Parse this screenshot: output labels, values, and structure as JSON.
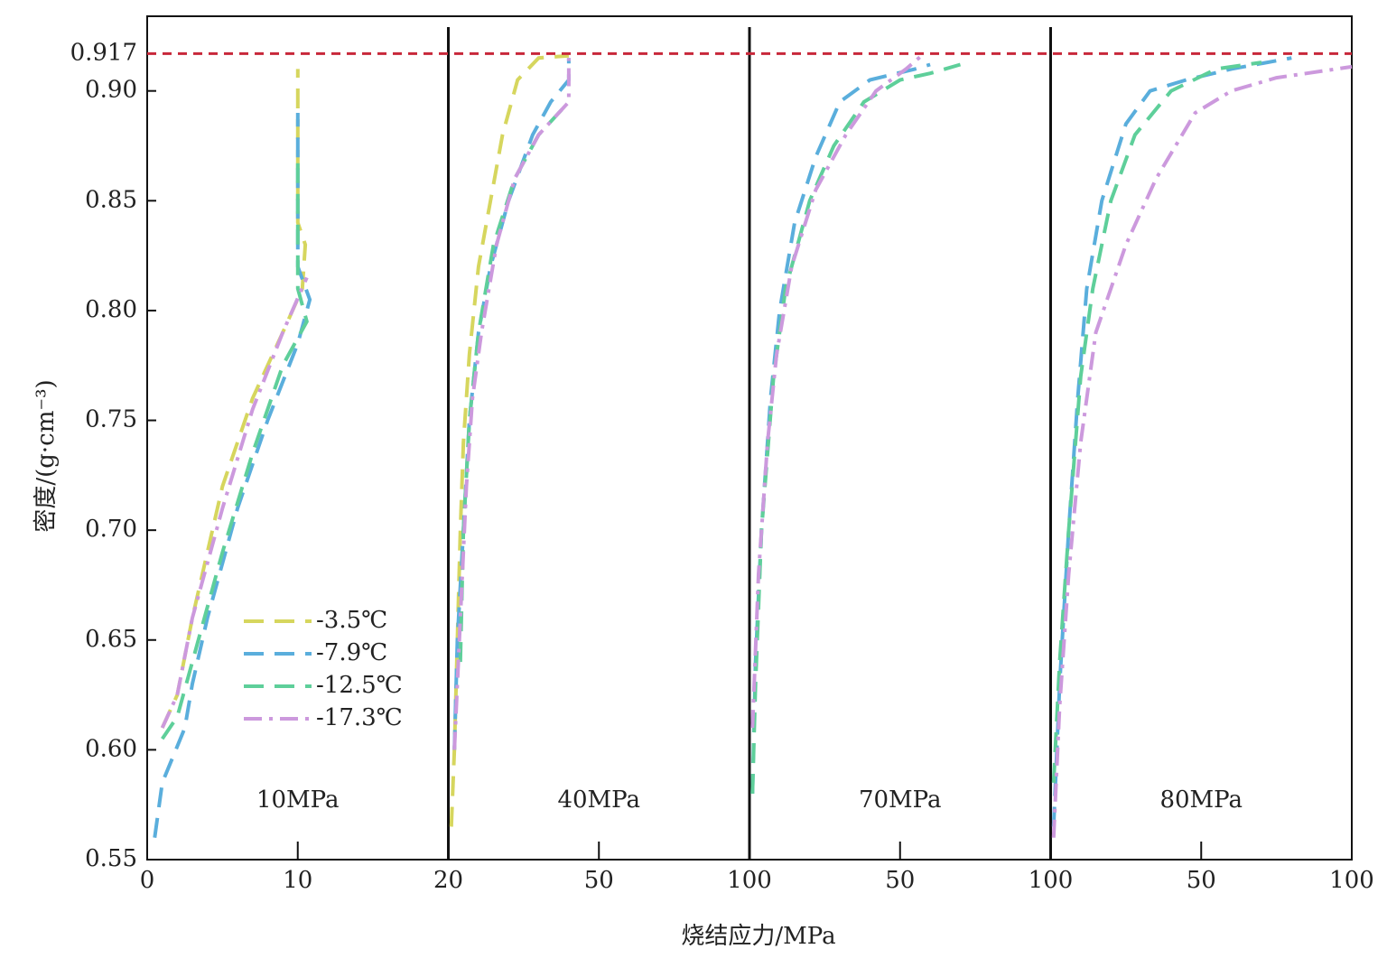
{
  "chart_data": [
    {
      "type": "line",
      "ylabel": "密度/(g·cm⁻³)",
      "xlabel": "烧结应力/MPa",
      "annotation": "10MPa",
      "ylim": [
        0.55,
        0.934
      ],
      "yticks": [
        {
          "value": 0.55,
          "label": "0.55"
        },
        {
          "value": 0.6,
          "label": "0.60"
        },
        {
          "value": 0.65,
          "label": "0.65"
        },
        {
          "value": 0.7,
          "label": "0.70"
        },
        {
          "value": 0.75,
          "label": "0.75"
        },
        {
          "value": 0.8,
          "label": "0.80"
        },
        {
          "value": 0.85,
          "label": "0.85"
        },
        {
          "value": 0.9,
          "label": "0.90"
        },
        0.917
      ],
      "hline": {
        "value": 0.917,
        "color": "#c8283a"
      },
      "legend": "lower left",
      "xlim": [
        0,
        20
      ],
      "xticks": [
        0,
        10,
        20
      ],
      "series": [
        {
          "name": "-3.5℃",
          "color": "#d6d65e",
          "dash": "dashed",
          "x": [
            1,
            2,
            3,
            5,
            7,
            9,
            10.3,
            10.5,
            10,
            10
          ],
          "values": [
            0.61,
            0.625,
            0.66,
            0.72,
            0.76,
            0.79,
            0.81,
            0.83,
            0.84,
            0.91
          ]
        },
        {
          "name": "-7.9℃",
          "color": "#5aaedc",
          "dash": "dashed",
          "x": [
            0.5,
            1,
            2.5,
            3,
            4,
            6,
            8,
            10,
            10.8,
            10,
            10
          ],
          "values": [
            0.56,
            0.585,
            0.61,
            0.63,
            0.66,
            0.71,
            0.75,
            0.785,
            0.805,
            0.82,
            0.89
          ]
        },
        {
          "name": "-12.5℃",
          "color": "#5ecf9a",
          "dash": "dashed",
          "x": [
            1,
            2,
            3,
            5,
            7,
            9,
            10.6,
            10,
            10
          ],
          "values": [
            0.605,
            0.615,
            0.64,
            0.69,
            0.735,
            0.775,
            0.795,
            0.81,
            0.87
          ]
        },
        {
          "name": "-17.3℃",
          "color": "#cc99dd",
          "dash": "dashdot",
          "x": [
            1,
            2,
            3,
            5,
            7,
            9,
            10.6
          ],
          "values": [
            0.61,
            0.625,
            0.66,
            0.71,
            0.755,
            0.79,
            0.815
          ]
        }
      ]
    },
    {
      "type": "line",
      "annotation": "40MPa",
      "xlim": [
        0,
        100
      ],
      "xticks": [
        50,
        100
      ],
      "series": [
        {
          "name": "-3.5℃",
          "color": "#d6d65e",
          "dash": "dashed",
          "x": [
            1,
            2,
            3,
            4,
            5,
            7,
            10,
            14,
            18,
            23,
            30,
            40
          ],
          "values": [
            0.565,
            0.6,
            0.65,
            0.7,
            0.74,
            0.78,
            0.82,
            0.85,
            0.88,
            0.905,
            0.915,
            0.916
          ]
        },
        {
          "name": "-7.9℃",
          "color": "#5aaedc",
          "dash": "dashed",
          "x": [
            2,
            3,
            5,
            7,
            10,
            14,
            20,
            28,
            34,
            40,
            40
          ],
          "values": [
            0.6,
            0.65,
            0.7,
            0.75,
            0.79,
            0.82,
            0.85,
            0.88,
            0.895,
            0.905,
            0.915
          ]
        },
        {
          "name": "-12.5℃",
          "color": "#5ecf9a",
          "dash": "dashed",
          "x": [
            4,
            5,
            7,
            10,
            15,
            22,
            30,
            40
          ],
          "values": [
            0.64,
            0.7,
            0.75,
            0.79,
            0.83,
            0.86,
            0.88,
            0.895
          ]
        },
        {
          "name": "-17.3℃",
          "color": "#cc99dd",
          "dash": "dashdot",
          "x": [
            2,
            4,
            6,
            8,
            11,
            16,
            22,
            30,
            40,
            40
          ],
          "values": [
            0.6,
            0.66,
            0.72,
            0.76,
            0.79,
            0.83,
            0.86,
            0.88,
            0.895,
            0.915
          ]
        }
      ]
    },
    {
      "type": "line",
      "annotation": "70MPa",
      "xlim": [
        0,
        100
      ],
      "xticks": [
        50,
        100
      ],
      "series": [
        {
          "name": "-7.9℃",
          "color": "#5aaedc",
          "dash": "dashed",
          "x": [
            1,
            2,
            4,
            7,
            10,
            15,
            22,
            30,
            40,
            55,
            60
          ],
          "values": [
            0.58,
            0.64,
            0.7,
            0.76,
            0.8,
            0.84,
            0.87,
            0.895,
            0.905,
            0.91,
            0.912
          ]
        },
        {
          "name": "-12.5℃",
          "color": "#5ecf9a",
          "dash": "dashed",
          "x": [
            1,
            2,
            4,
            8,
            12,
            20,
            28,
            38,
            50,
            60,
            70
          ],
          "values": [
            0.58,
            0.63,
            0.7,
            0.77,
            0.81,
            0.85,
            0.875,
            0.895,
            0.905,
            0.908,
            0.912
          ]
        },
        {
          "name": "-17.3℃",
          "color": "#cc99dd",
          "dash": "dashdot",
          "x": [
            1,
            3,
            6,
            9,
            14,
            22,
            32,
            42,
            52,
            58
          ],
          "values": [
            0.61,
            0.68,
            0.74,
            0.78,
            0.82,
            0.855,
            0.88,
            0.9,
            0.91,
            0.917
          ]
        }
      ]
    },
    {
      "type": "line",
      "annotation": "80MPa",
      "xlim": [
        0,
        100
      ],
      "xticks": [
        50,
        100
      ],
      "series": [
        {
          "name": "-7.9℃",
          "color": "#5aaedc",
          "dash": "dashed",
          "x": [
            1,
            3,
            6,
            9,
            12,
            17,
            25,
            33,
            45,
            60,
            80
          ],
          "values": [
            0.565,
            0.63,
            0.7,
            0.76,
            0.81,
            0.85,
            0.885,
            0.9,
            0.905,
            0.91,
            0.915
          ]
        },
        {
          "name": "-12.5℃",
          "color": "#5ecf9a",
          "dash": "dashed",
          "x": [
            1,
            3,
            6,
            10,
            14,
            20,
            28,
            40,
            55,
            70
          ],
          "values": [
            0.585,
            0.64,
            0.7,
            0.77,
            0.81,
            0.85,
            0.88,
            0.9,
            0.91,
            0.913
          ]
        },
        {
          "name": "-17.3℃",
          "color": "#cc99dd",
          "dash": "dashdot",
          "x": [
            1,
            3,
            6,
            10,
            15,
            25,
            35,
            48,
            60,
            75,
            100
          ],
          "values": [
            0.56,
            0.62,
            0.68,
            0.74,
            0.79,
            0.83,
            0.86,
            0.89,
            0.9,
            0.906,
            0.911
          ]
        }
      ]
    }
  ]
}
